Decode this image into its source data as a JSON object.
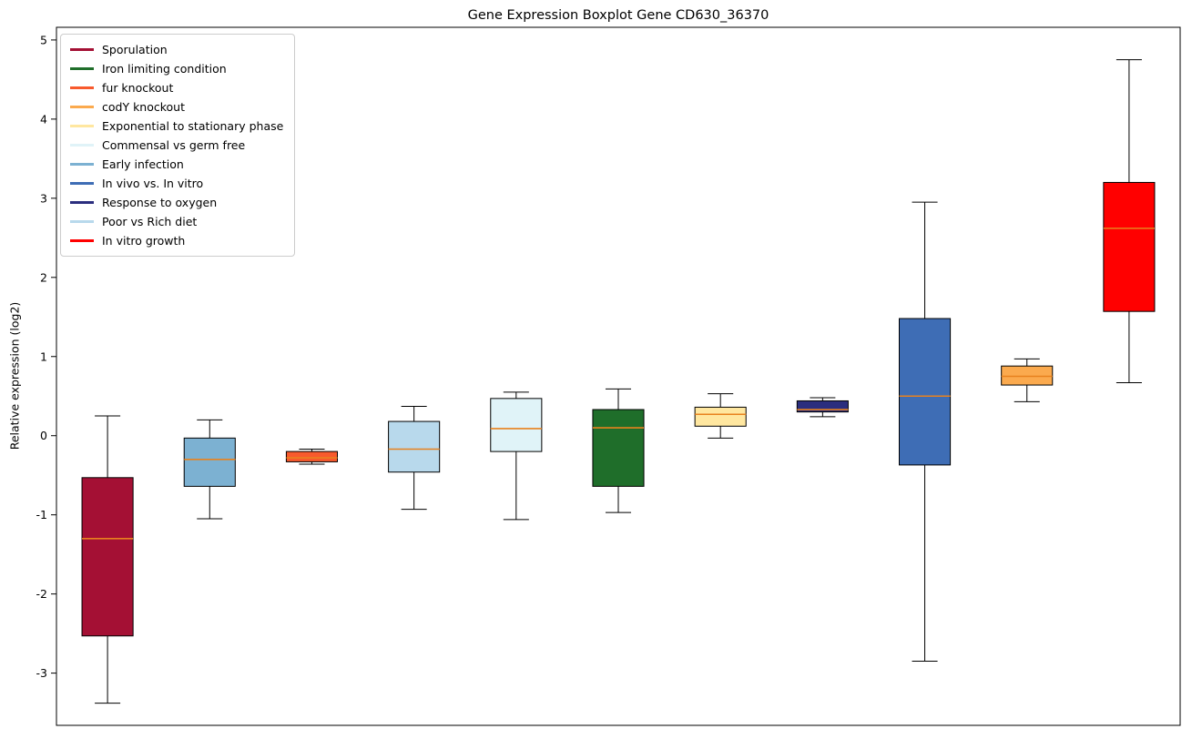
{
  "chart_data": {
    "type": "boxplot",
    "title": "Gene Expression Boxplot Gene CD630_36370",
    "ylabel": "Relative expression (log2)",
    "xlabel": "",
    "ylim": [
      -3.66,
      5.16
    ],
    "yticks": [
      5,
      4,
      3,
      2,
      1,
      0,
      -1,
      -2,
      -3
    ],
    "grid": false,
    "legend_position": "upper-left",
    "median_color": "#e8821e",
    "axis_color": "#000000",
    "legend": [
      {
        "label": "Sporulation",
        "color": "#a41034"
      },
      {
        "label": "Iron limiting condition",
        "color": "#1f6e2a"
      },
      {
        "label": "fur knockout",
        "color": "#f85a2d"
      },
      {
        "label": "codY knockout",
        "color": "#fbaa4e"
      },
      {
        "label": "Exponential to stationary phase",
        "color": "#ffe7a0"
      },
      {
        "label": "Commensal vs germ free",
        "color": "#e0f3f8"
      },
      {
        "label": "Early infection",
        "color": "#7cb1d2"
      },
      {
        "label": "In vivo vs. In vitro",
        "color": "#3e6db5"
      },
      {
        "label": "Response to oxygen",
        "color": "#2b2e7e"
      },
      {
        "label": "Poor vs Rich diet",
        "color": "#b8d9ec"
      },
      {
        "label": "In vitro growth",
        "color": "#ff0000"
      }
    ],
    "boxes": [
      {
        "label": "Sporulation",
        "color": "#a41034",
        "whisker_low": -3.38,
        "q1": -2.53,
        "median": -1.3,
        "q3": -0.53,
        "whisker_high": 0.25
      },
      {
        "label": "Early infection",
        "color": "#7cb1d2",
        "whisker_low": -1.05,
        "q1": -0.64,
        "median": -0.3,
        "q3": -0.03,
        "whisker_high": 0.2
      },
      {
        "label": "fur knockout",
        "color": "#f85a2d",
        "whisker_low": -0.36,
        "q1": -0.33,
        "median": -0.28,
        "q3": -0.2,
        "whisker_high": -0.17
      },
      {
        "label": "Poor vs Rich diet",
        "color": "#b8d9ec",
        "whisker_low": -0.93,
        "q1": -0.46,
        "median": -0.17,
        "q3": 0.18,
        "whisker_high": 0.37
      },
      {
        "label": "Commensal vs germ free",
        "color": "#e0f3f8",
        "whisker_low": -1.06,
        "q1": -0.2,
        "median": 0.09,
        "q3": 0.47,
        "whisker_high": 0.55
      },
      {
        "label": "Iron limiting condition",
        "color": "#1f6e2a",
        "whisker_low": -0.97,
        "q1": -0.64,
        "median": 0.1,
        "q3": 0.33,
        "whisker_high": 0.59
      },
      {
        "label": "Exponential to stationary phase",
        "color": "#ffe7a0",
        "whisker_low": -0.03,
        "q1": 0.12,
        "median": 0.27,
        "q3": 0.36,
        "whisker_high": 0.53
      },
      {
        "label": "Response to oxygen",
        "color": "#2b2e7e",
        "whisker_low": 0.24,
        "q1": 0.3,
        "median": 0.33,
        "q3": 0.44,
        "whisker_high": 0.48
      },
      {
        "label": "In vivo vs. In vitro",
        "color": "#3e6db5",
        "whisker_low": -2.85,
        "q1": -0.37,
        "median": 0.5,
        "q3": 1.48,
        "whisker_high": 2.95
      },
      {
        "label": "codY knockout",
        "color": "#fbaa4e",
        "whisker_low": 0.43,
        "q1": 0.64,
        "median": 0.75,
        "q3": 0.88,
        "whisker_high": 0.97
      },
      {
        "label": "In vitro growth",
        "color": "#ff0000",
        "whisker_low": 0.67,
        "q1": 1.57,
        "median": 2.62,
        "q3": 3.2,
        "whisker_high": 4.75
      }
    ]
  }
}
